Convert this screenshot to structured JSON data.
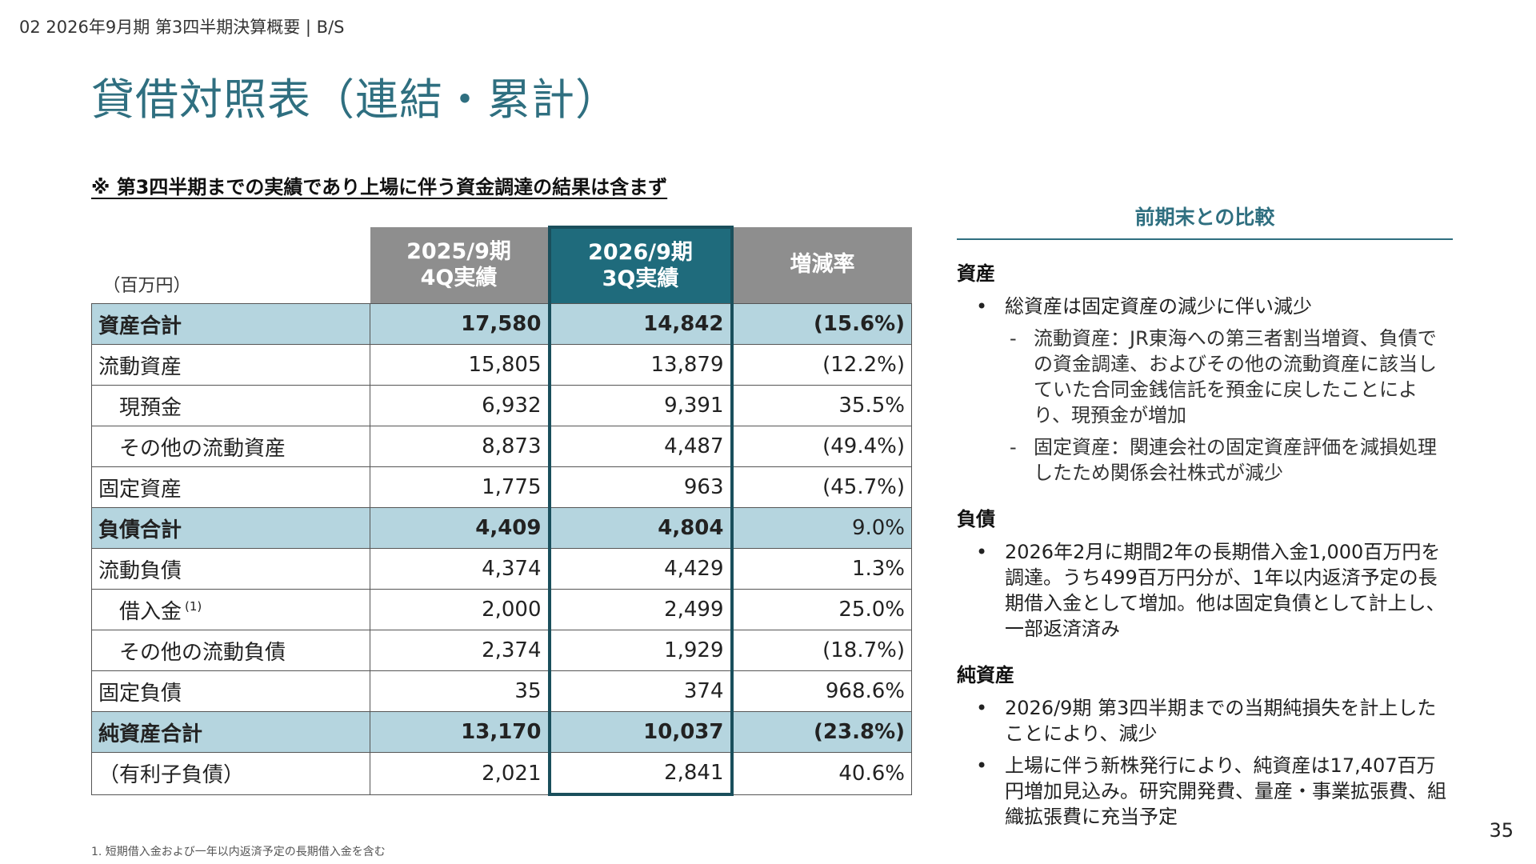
{
  "header": {
    "breadcrumb": "02 2026年9月期 第3四半期決算概要 | B/S",
    "title": "貸借対照表（連結・累計）"
  },
  "note": "※ 第3四半期までの実績であり上場に伴う資金調達の結果は含まず",
  "table": {
    "unit_label": "（百万円）",
    "col_prev_line1": "2025/9期",
    "col_prev_line2": "4Q実績",
    "col_curr_line1": "2026/9期",
    "col_curr_line2": "3Q実績",
    "col_rate": "増減率",
    "rows": [
      {
        "label": "資産合計",
        "prev": "17,580",
        "curr": "14,842",
        "rate": "(15.6%)"
      },
      {
        "label": "流動資産",
        "prev": "15,805",
        "curr": "13,879",
        "rate": "(12.2%)"
      },
      {
        "label": "現預金",
        "prev": "6,932",
        "curr": "9,391",
        "rate": "35.5%"
      },
      {
        "label": "その他の流動資産",
        "prev": "8,873",
        "curr": "4,487",
        "rate": "(49.4%)"
      },
      {
        "label": "固定資産",
        "prev": "1,775",
        "curr": "963",
        "rate": "(45.7%)"
      },
      {
        "label": "負債合計",
        "prev": "4,409",
        "curr": "4,804",
        "rate": "9.0%"
      },
      {
        "label": "流動負債",
        "prev": "4,374",
        "curr": "4,429",
        "rate": "1.3%"
      },
      {
        "label": "借入金",
        "sup": "(1)",
        "prev": "2,000",
        "curr": "2,499",
        "rate": "25.0%"
      },
      {
        "label": "その他の流動負債",
        "prev": "2,374",
        "curr": "1,929",
        "rate": "(18.7%)"
      },
      {
        "label": "固定負債",
        "prev": "35",
        "curr": "374",
        "rate": "968.6%"
      },
      {
        "label": "純資産合計",
        "prev": "13,170",
        "curr": "10,037",
        "rate": "(23.8%)"
      },
      {
        "label": "（有利子負債）",
        "prev": "2,021",
        "curr": "2,841",
        "rate": "40.6%"
      }
    ]
  },
  "comparison": {
    "title": "前期末との比較",
    "assets_head": "資産",
    "assets_bullet": "総資産は固定資産の減少に伴い減少",
    "assets_sub1": "流動資産：JR東海への第三者割当増資、負債での資金調達、およびその他の流動資産に該当していた合同金銭信託を預金に戻したことにより、現預金が増加",
    "assets_sub2": "固定資産：関連会社の固定資産評価を減損処理したため関係会社株式が減少",
    "liabilities_head": "負債",
    "liabilities_bullet": "2026年2月に期間2年の長期借入金1,000百万円を調達。うち499百万円分が、1年以内返済予定の長期借入金として増加。他は固定負債として計上し、一部返済済み",
    "equity_head": "純資産",
    "equity_bullet1": "2026/9期 第3四半期までの当期純損失を計上したことにより、減少",
    "equity_bullet2": "上場に伴う新株発行により、純資産は17,407百万円増加見込み。研究開発費、量産・事業拡張費、組織拡張費に充当予定"
  },
  "footnote": "1. 短期借入金および一年以内返済予定の長期借入金を含む",
  "page_number": "35"
}
